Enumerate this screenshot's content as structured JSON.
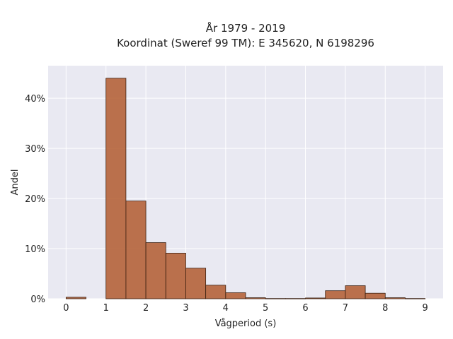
{
  "chart_data": {
    "type": "bar",
    "title_line1": "År 1979 - 2019",
    "title_line2": "Koordinat (Sweref 99 TM): E 345620, N 6198296",
    "xlabel": "Vågperiod (s)",
    "ylabel": "Andel",
    "x_ticks": [
      "0",
      "1",
      "2",
      "3",
      "4",
      "5",
      "6",
      "7",
      "8",
      "9"
    ],
    "x_tick_values": [
      0,
      1,
      2,
      3,
      4,
      5,
      6,
      7,
      8,
      9
    ],
    "y_ticks": [
      "0%",
      "10%",
      "20%",
      "30%",
      "40%"
    ],
    "y_tick_values": [
      0,
      10,
      20,
      30,
      40
    ],
    "xlim": [
      -0.45,
      9.45
    ],
    "ylim": [
      0,
      46.5
    ],
    "bin_width": 0.5,
    "bins": [
      {
        "x0": 0.0,
        "value": 0.3
      },
      {
        "x0": 0.5,
        "value": 0.0
      },
      {
        "x0": 1.0,
        "value": 44.0
      },
      {
        "x0": 1.5,
        "value": 19.5
      },
      {
        "x0": 2.0,
        "value": 11.2
      },
      {
        "x0": 2.5,
        "value": 9.1
      },
      {
        "x0": 3.0,
        "value": 6.1
      },
      {
        "x0": 3.5,
        "value": 2.7
      },
      {
        "x0": 4.0,
        "value": 1.2
      },
      {
        "x0": 4.5,
        "value": 0.2
      },
      {
        "x0": 5.0,
        "value": 0.05
      },
      {
        "x0": 5.5,
        "value": 0.05
      },
      {
        "x0": 6.0,
        "value": 0.15
      },
      {
        "x0": 6.5,
        "value": 1.6
      },
      {
        "x0": 7.0,
        "value": 2.6
      },
      {
        "x0": 7.5,
        "value": 1.1
      },
      {
        "x0": 8.0,
        "value": 0.2
      },
      {
        "x0": 8.5,
        "value": 0.05
      }
    ],
    "grid": true,
    "bar_color": "#b5633a",
    "bar_edge_color": "#3a1f10",
    "plot_background": "#e9e9f2",
    "grid_color": "#ffffff"
  }
}
